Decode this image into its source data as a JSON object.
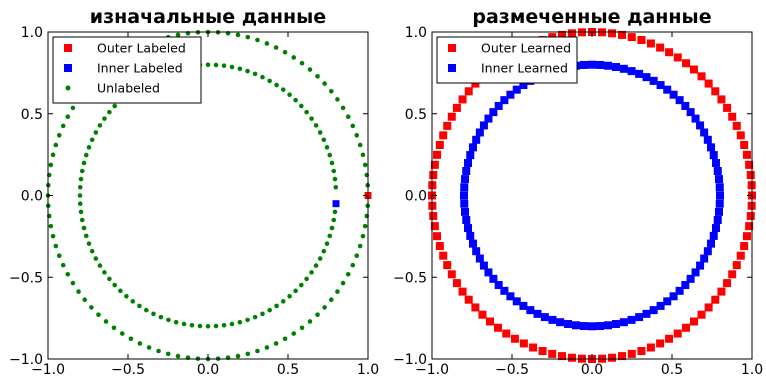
{
  "chart_data": [
    {
      "type": "scatter",
      "title": "изначальные данные",
      "xlim": [
        -1.0,
        1.0
      ],
      "ylim": [
        -1.0,
        1.0
      ],
      "xticks": [
        "−1.0",
        "−0.5",
        "0.0",
        "0.5",
        "1.0"
      ],
      "yticks": [
        "−1.0",
        "−0.5",
        "0.0",
        "0.5",
        "1.0"
      ],
      "grid": false,
      "legend_position": "top-left",
      "circles": {
        "outer_radius": 1.0,
        "inner_radius": 0.8,
        "points_per_circle": 100
      },
      "series": [
        {
          "name": "Outer Labeled",
          "color": "#ff0000",
          "marker": "square",
          "points": [
            [
              1.0,
              0.0
            ]
          ]
        },
        {
          "name": "Inner Labeled",
          "color": "#0000ff",
          "marker": "square",
          "points": [
            [
              0.8,
              -0.05
            ]
          ]
        },
        {
          "name": "Unlabeled",
          "color": "#008000",
          "marker": "dot",
          "points": "all remaining points of both circles"
        }
      ]
    },
    {
      "type": "scatter",
      "title": "размеченные данные",
      "xlim": [
        -1.0,
        1.0
      ],
      "ylim": [
        -1.0,
        1.0
      ],
      "xticks": [
        "−1.0",
        "−0.5",
        "0.0",
        "0.5",
        "1.0"
      ],
      "yticks": [
        "−1.0",
        "−0.5",
        "0.0",
        "0.5",
        "1.0"
      ],
      "grid": false,
      "legend_position": "top-left",
      "circles": {
        "outer_radius": 1.0,
        "inner_radius": 0.8,
        "points_per_circle": 100
      },
      "series": [
        {
          "name": "Outer Learned",
          "color": "#ff0000",
          "marker": "square",
          "points": "all points of outer circle (r = 1.0)"
        },
        {
          "name": "Inner Learned",
          "color": "#0000ff",
          "marker": "square",
          "points": "all points of inner circle (r = 0.8)"
        }
      ]
    }
  ]
}
